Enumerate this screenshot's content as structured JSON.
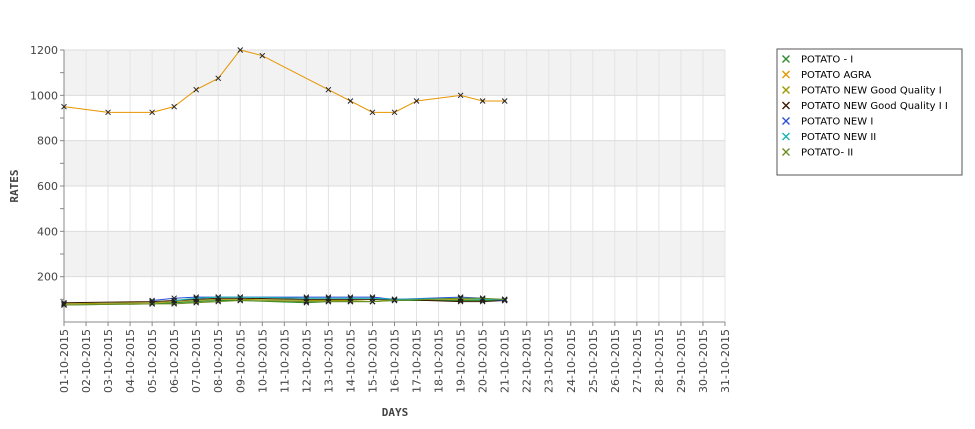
{
  "chart_data": {
    "type": "line",
    "xlabel": "DAYS",
    "ylabel": "RATES",
    "ylim": [
      0,
      1200
    ],
    "yticks": [
      200,
      400,
      600,
      800,
      1000,
      1200
    ],
    "x": [
      "01-10-2015",
      "02-10-2015",
      "03-10-2015",
      "04-10-2015",
      "05-10-2015",
      "06-10-2015",
      "07-10-2015",
      "08-10-2015",
      "09-10-2015",
      "10-10-2015",
      "11-10-2015",
      "12-10-2015",
      "13-10-2015",
      "14-10-2015",
      "15-10-2015",
      "16-10-2015",
      "17-10-2015",
      "18-10-2015",
      "19-10-2015",
      "20-10-2015",
      "21-10-2015",
      "22-10-2015",
      "23-10-2015",
      "24-10-2015",
      "25-10-2015",
      "26-10-2015",
      "27-10-2015",
      "28-10-2015",
      "29-10-2015",
      "30-10-2015",
      "31-10-2015"
    ],
    "grid": true,
    "legend_position": "right",
    "series": [
      {
        "name": "POTATO - I",
        "color": "#2e8b2e",
        "values": [
          75,
          null,
          null,
          null,
          80,
          85,
          90,
          95,
          95,
          null,
          null,
          85,
          90,
          90,
          90,
          95,
          null,
          null,
          95,
          95,
          95,
          null,
          null,
          null,
          null,
          null,
          null,
          null,
          null,
          null,
          null
        ]
      },
      {
        "name": "POTATO AGRA",
        "color": "#e69500",
        "values": [
          950,
          null,
          925,
          null,
          925,
          950,
          1025,
          1075,
          1200,
          1175,
          null,
          null,
          1025,
          975,
          925,
          925,
          975,
          null,
          1000,
          975,
          975,
          null,
          null,
          null,
          null,
          null,
          null,
          null,
          null,
          null,
          null
        ]
      },
      {
        "name": "POTATO NEW Good Quality I",
        "color": "#9a9a00",
        "values": [
          80,
          null,
          null,
          null,
          85,
          90,
          95,
          100,
          100,
          null,
          null,
          95,
          95,
          95,
          90,
          100,
          null,
          null,
          100,
          100,
          100,
          null,
          null,
          null,
          null,
          null,
          null,
          null,
          null,
          null,
          null
        ]
      },
      {
        "name": "POTATO NEW Good Quality I I",
        "color": "#3a1a00",
        "values": [
          85,
          null,
          null,
          null,
          90,
          95,
          100,
          105,
          105,
          null,
          null,
          100,
          100,
          100,
          100,
          100,
          null,
          null,
          90,
          90,
          95,
          null,
          null,
          null,
          null,
          null,
          null,
          null,
          null,
          null,
          null
        ]
      },
      {
        "name": "POTATO NEW I",
        "color": "#2b4fd6",
        "values": [
          null,
          null,
          null,
          null,
          95,
          105,
          110,
          110,
          110,
          null,
          null,
          110,
          110,
          110,
          110,
          100,
          null,
          null,
          110,
          105,
          95,
          null,
          null,
          null,
          null,
          null,
          null,
          null,
          null,
          null,
          null
        ]
      },
      {
        "name": "POTATO NEW II",
        "color": "#19b4b4",
        "values": [
          null,
          null,
          null,
          null,
          null,
          95,
          105,
          110,
          110,
          null,
          null,
          105,
          105,
          105,
          105,
          100,
          null,
          null,
          105,
          100,
          100,
          null,
          null,
          null,
          null,
          null,
          null,
          null,
          null,
          null,
          null
        ]
      },
      {
        "name": "POTATO- II",
        "color": "#6b8e23",
        "values": [
          75,
          null,
          null,
          null,
          80,
          80,
          85,
          90,
          95,
          null,
          null,
          90,
          90,
          90,
          90,
          95,
          null,
          null,
          105,
          105,
          100,
          null,
          null,
          null,
          null,
          null,
          null,
          null,
          null,
          null,
          null
        ]
      }
    ]
  }
}
